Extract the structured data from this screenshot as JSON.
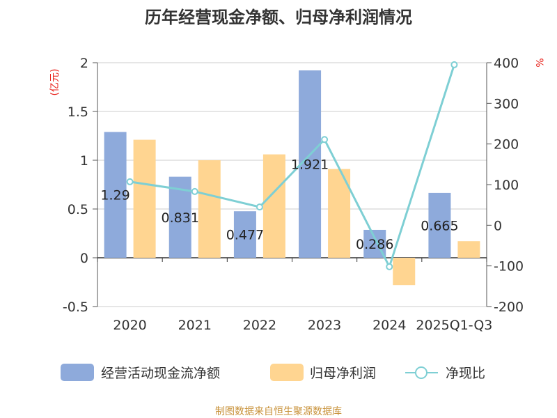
{
  "chart_data": {
    "type": "bar",
    "title": "历年经营现金净额、归母净利润情况",
    "categories": [
      "2020",
      "2021",
      "2022",
      "2023",
      "2024",
      "2025Q1-Q3"
    ],
    "left_axis": {
      "unit": "(亿元)",
      "ylim": [
        -0.5,
        2
      ],
      "ticks": [
        "2",
        "1.5",
        "1",
        "0.5",
        "0",
        "-0.5"
      ],
      "tick_values": [
        2,
        1.5,
        1,
        0.5,
        0,
        -0.5
      ]
    },
    "right_axis": {
      "unit": "%",
      "ylim": [
        -200,
        400
      ],
      "ticks": [
        "400",
        "300",
        "200",
        "100",
        "0",
        "-100",
        "-200"
      ],
      "tick_values": [
        400,
        300,
        200,
        100,
        0,
        -100,
        -200
      ]
    },
    "series": [
      {
        "name": "经营活动现金流净额",
        "type": "bar",
        "axis": "left",
        "color": "#8eaadb",
        "values": [
          1.29,
          0.831,
          0.477,
          1.921,
          0.286,
          0.665
        ],
        "labels": [
          "1.29",
          "0.831",
          "0.477",
          "1.921",
          "0.286",
          "0.665"
        ]
      },
      {
        "name": "归母净利润",
        "type": "bar",
        "axis": "left",
        "color": "#ffd591",
        "values": [
          1.21,
          1.0,
          1.06,
          0.91,
          -0.28,
          0.17
        ]
      },
      {
        "name": "净现比",
        "type": "line",
        "axis": "right",
        "color": "#7ecfd4",
        "values": [
          107,
          83,
          45,
          211,
          -102,
          395
        ]
      }
    ],
    "grid": true,
    "legend_position": "bottom"
  },
  "source_text": "制图数据来自恒生聚源数据库"
}
